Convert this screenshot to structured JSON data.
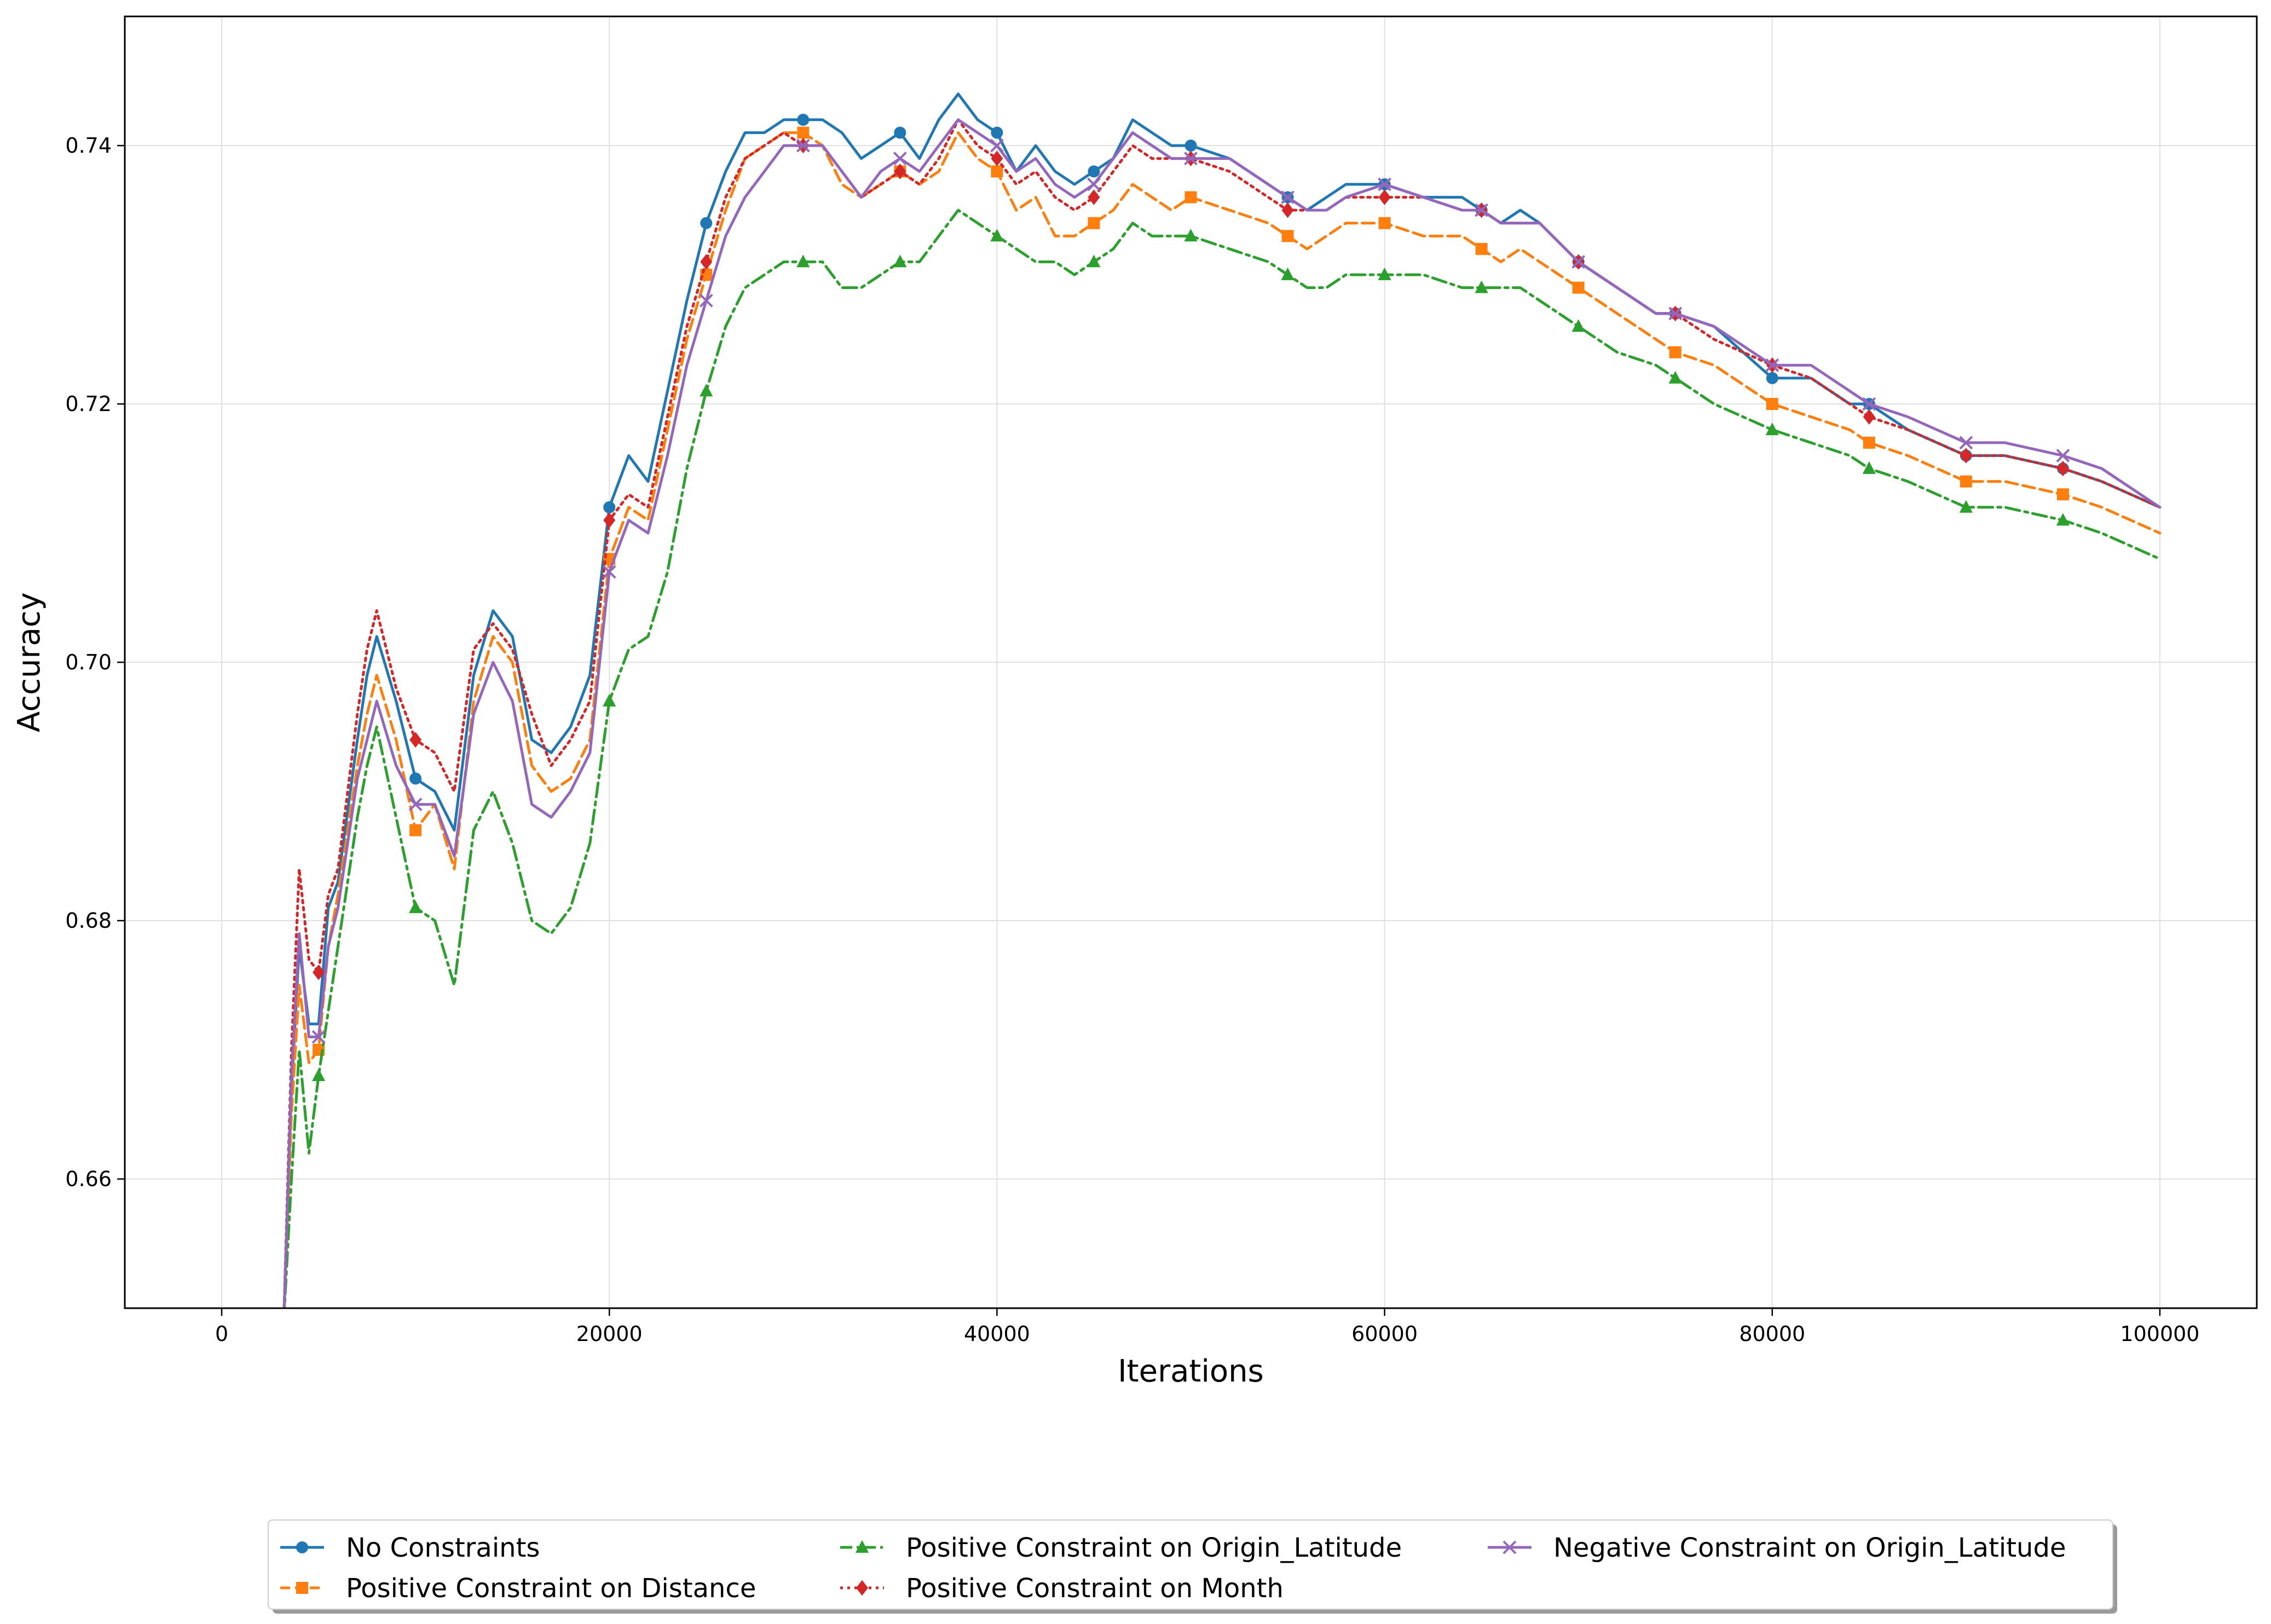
{
  "chart_data": {
    "type": "line",
    "title": "",
    "xlabel": "Iterations",
    "ylabel": "Accuracy",
    "xlim": [
      -5000,
      105000
    ],
    "ylim": [
      0.65,
      0.75
    ],
    "xticks": [
      0,
      20000,
      40000,
      60000,
      80000,
      100000
    ],
    "yticks": [
      0.66,
      0.68,
      0.7,
      0.72,
      0.74
    ],
    "xtick_labels": [
      "0",
      "20000",
      "40000",
      "60000",
      "80000",
      "100000"
    ],
    "ytick_labels": [
      "0.66",
      "0.68",
      "0.70",
      "0.72",
      "0.74"
    ],
    "grid": true,
    "legend_position": "bottom-center",
    "series": [
      {
        "name": "No Constraints",
        "color": "#1f77b4",
        "linestyle": "solid",
        "marker": "circle",
        "x": [
          3200,
          3600,
          4000,
          4500,
          5000,
          5500,
          6000,
          7000,
          7500,
          8000,
          9000,
          10000,
          11000,
          12000,
          13000,
          14000,
          15000,
          16000,
          17000,
          18000,
          19000,
          20000,
          21000,
          22000,
          23000,
          24000,
          25000,
          26000,
          27000,
          28000,
          29000,
          30000,
          31000,
          32000,
          33000,
          34000,
          35000,
          36000,
          37000,
          38000,
          39000,
          40000,
          41000,
          42000,
          43000,
          44000,
          45000,
          46000,
          47000,
          48000,
          49000,
          50000,
          52000,
          54000,
          55000,
          56000,
          57000,
          58000,
          60000,
          62000,
          64000,
          65000,
          66000,
          67000,
          68000,
          70000,
          72000,
          74000,
          75000,
          77000,
          80000,
          82000,
          84000,
          85000,
          87000,
          90000,
          92000,
          95000,
          97000,
          100000
        ],
        "y": [
          0.649,
          0.667,
          0.678,
          0.672,
          0.672,
          0.681,
          0.683,
          0.694,
          0.699,
          0.702,
          0.697,
          0.691,
          0.69,
          0.687,
          0.699,
          0.704,
          0.702,
          0.694,
          0.693,
          0.695,
          0.699,
          0.712,
          0.716,
          0.714,
          0.721,
          0.728,
          0.734,
          0.738,
          0.741,
          0.741,
          0.742,
          0.742,
          0.742,
          0.741,
          0.739,
          0.74,
          0.741,
          0.739,
          0.742,
          0.744,
          0.742,
          0.741,
          0.738,
          0.74,
          0.738,
          0.737,
          0.738,
          0.739,
          0.742,
          0.741,
          0.74,
          0.74,
          0.739,
          0.737,
          0.736,
          0.735,
          0.736,
          0.737,
          0.737,
          0.736,
          0.736,
          0.735,
          0.734,
          0.735,
          0.734,
          0.731,
          0.729,
          0.727,
          0.727,
          0.726,
          0.722,
          0.722,
          0.72,
          0.72,
          0.718,
          0.716,
          0.716,
          0.715,
          0.714,
          0.712
        ],
        "marker_x": [
          10000,
          20000,
          25000,
          30000,
          35000,
          40000,
          45000,
          50000,
          55000,
          60000,
          65000,
          70000,
          75000,
          80000,
          85000,
          90000,
          95000
        ]
      },
      {
        "name": "Positive Constraint on Distance",
        "color": "#ff7f0e",
        "linestyle": "dashed",
        "marker": "square",
        "x": [
          3200,
          3600,
          4000,
          4500,
          5000,
          5500,
          6000,
          7000,
          7500,
          8000,
          9000,
          10000,
          11000,
          12000,
          13000,
          14000,
          15000,
          16000,
          17000,
          18000,
          19000,
          20000,
          21000,
          22000,
          23000,
          24000,
          25000,
          26000,
          27000,
          28000,
          29000,
          30000,
          31000,
          32000,
          33000,
          34000,
          35000,
          36000,
          37000,
          38000,
          39000,
          40000,
          41000,
          42000,
          43000,
          44000,
          45000,
          46000,
          47000,
          48000,
          49000,
          50000,
          52000,
          54000,
          55000,
          56000,
          57000,
          58000,
          60000,
          62000,
          64000,
          65000,
          66000,
          67000,
          68000,
          70000,
          72000,
          74000,
          75000,
          77000,
          80000,
          82000,
          84000,
          85000,
          87000,
          90000,
          92000,
          95000,
          97000,
          100000
        ],
        "y": [
          0.649,
          0.665,
          0.675,
          0.669,
          0.67,
          0.678,
          0.682,
          0.692,
          0.696,
          0.699,
          0.694,
          0.687,
          0.689,
          0.684,
          0.697,
          0.702,
          0.7,
          0.692,
          0.69,
          0.691,
          0.694,
          0.708,
          0.712,
          0.711,
          0.718,
          0.725,
          0.73,
          0.735,
          0.739,
          0.74,
          0.741,
          0.741,
          0.74,
          0.737,
          0.736,
          0.737,
          0.738,
          0.737,
          0.738,
          0.741,
          0.739,
          0.738,
          0.735,
          0.736,
          0.733,
          0.733,
          0.734,
          0.735,
          0.737,
          0.736,
          0.735,
          0.736,
          0.735,
          0.734,
          0.733,
          0.732,
          0.733,
          0.734,
          0.734,
          0.733,
          0.733,
          0.732,
          0.731,
          0.732,
          0.731,
          0.729,
          0.727,
          0.725,
          0.724,
          0.723,
          0.72,
          0.719,
          0.718,
          0.717,
          0.716,
          0.714,
          0.714,
          0.713,
          0.712,
          0.71
        ],
        "marker_x": [
          5000,
          10000,
          20000,
          25000,
          30000,
          35000,
          40000,
          45000,
          50000,
          55000,
          60000,
          65000,
          70000,
          75000,
          80000,
          85000,
          90000,
          95000
        ]
      },
      {
        "name": "Positive Constraint on Origin_Latitude",
        "color": "#2ca02c",
        "linestyle": "dashdot",
        "marker": "triangle",
        "x": [
          3200,
          3600,
          4000,
          4500,
          5000,
          5500,
          6000,
          7000,
          7500,
          8000,
          9000,
          10000,
          11000,
          12000,
          13000,
          14000,
          15000,
          16000,
          17000,
          18000,
          19000,
          20000,
          21000,
          22000,
          23000,
          24000,
          25000,
          26000,
          27000,
          28000,
          29000,
          30000,
          31000,
          32000,
          33000,
          34000,
          35000,
          36000,
          37000,
          38000,
          39000,
          40000,
          41000,
          42000,
          43000,
          44000,
          45000,
          46000,
          47000,
          48000,
          49000,
          50000,
          52000,
          54000,
          55000,
          56000,
          57000,
          58000,
          60000,
          62000,
          64000,
          65000,
          66000,
          67000,
          68000,
          70000,
          72000,
          74000,
          75000,
          77000,
          80000,
          82000,
          84000,
          85000,
          87000,
          90000,
          92000,
          95000,
          97000,
          100000
        ],
        "y": [
          0.649,
          0.66,
          0.67,
          0.662,
          0.668,
          0.673,
          0.678,
          0.688,
          0.692,
          0.695,
          0.688,
          0.681,
          0.68,
          0.675,
          0.687,
          0.69,
          0.686,
          0.68,
          0.679,
          0.681,
          0.686,
          0.697,
          0.701,
          0.702,
          0.707,
          0.715,
          0.721,
          0.726,
          0.729,
          0.73,
          0.731,
          0.731,
          0.731,
          0.729,
          0.729,
          0.73,
          0.731,
          0.731,
          0.733,
          0.735,
          0.734,
          0.733,
          0.732,
          0.731,
          0.731,
          0.73,
          0.731,
          0.732,
          0.734,
          0.733,
          0.733,
          0.733,
          0.732,
          0.731,
          0.73,
          0.729,
          0.729,
          0.73,
          0.73,
          0.73,
          0.729,
          0.729,
          0.729,
          0.729,
          0.728,
          0.726,
          0.724,
          0.723,
          0.722,
          0.72,
          0.718,
          0.717,
          0.716,
          0.715,
          0.714,
          0.712,
          0.712,
          0.711,
          0.71,
          0.708
        ],
        "marker_x": [
          5000,
          10000,
          20000,
          25000,
          30000,
          35000,
          40000,
          45000,
          50000,
          55000,
          60000,
          65000,
          70000,
          75000,
          80000,
          85000,
          90000,
          95000
        ]
      },
      {
        "name": "Positive Constraint on Month",
        "color": "#d62728",
        "linestyle": "dotted",
        "marker": "diamond",
        "x": [
          3200,
          3600,
          4000,
          4500,
          5000,
          5500,
          6000,
          7000,
          7500,
          8000,
          9000,
          10000,
          11000,
          12000,
          13000,
          14000,
          15000,
          16000,
          17000,
          18000,
          19000,
          20000,
          21000,
          22000,
          23000,
          24000,
          25000,
          26000,
          27000,
          28000,
          29000,
          30000,
          31000,
          32000,
          33000,
          34000,
          35000,
          36000,
          37000,
          38000,
          39000,
          40000,
          41000,
          42000,
          43000,
          44000,
          45000,
          46000,
          47000,
          48000,
          49000,
          50000,
          52000,
          54000,
          55000,
          56000,
          57000,
          58000,
          60000,
          62000,
          64000,
          65000,
          66000,
          67000,
          68000,
          70000,
          72000,
          74000,
          75000,
          77000,
          80000,
          82000,
          84000,
          85000,
          87000,
          90000,
          92000,
          95000,
          97000,
          100000
        ],
        "y": [
          0.649,
          0.67,
          0.684,
          0.677,
          0.676,
          0.682,
          0.684,
          0.696,
          0.701,
          0.704,
          0.698,
          0.694,
          0.693,
          0.69,
          0.701,
          0.703,
          0.701,
          0.696,
          0.692,
          0.694,
          0.697,
          0.711,
          0.713,
          0.712,
          0.719,
          0.726,
          0.731,
          0.736,
          0.739,
          0.74,
          0.741,
          0.74,
          0.74,
          0.738,
          0.736,
          0.737,
          0.738,
          0.737,
          0.739,
          0.742,
          0.74,
          0.739,
          0.737,
          0.738,
          0.736,
          0.735,
          0.736,
          0.738,
          0.74,
          0.739,
          0.739,
          0.739,
          0.738,
          0.736,
          0.735,
          0.735,
          0.735,
          0.736,
          0.736,
          0.736,
          0.735,
          0.735,
          0.734,
          0.734,
          0.734,
          0.731,
          0.729,
          0.727,
          0.727,
          0.725,
          0.723,
          0.722,
          0.72,
          0.719,
          0.718,
          0.716,
          0.716,
          0.715,
          0.714,
          0.712
        ],
        "marker_x": [
          5000,
          10000,
          20000,
          25000,
          30000,
          35000,
          40000,
          45000,
          50000,
          55000,
          60000,
          65000,
          70000,
          75000,
          80000,
          85000,
          90000,
          95000
        ]
      },
      {
        "name": "Negative Constraint on Origin_Latitude",
        "color": "#9467bd",
        "linestyle": "solid",
        "marker": "x",
        "x": [
          3200,
          3600,
          4000,
          4500,
          5000,
          5500,
          6000,
          7000,
          7500,
          8000,
          9000,
          10000,
          11000,
          12000,
          13000,
          14000,
          15000,
          16000,
          17000,
          18000,
          19000,
          20000,
          21000,
          22000,
          23000,
          24000,
          25000,
          26000,
          27000,
          28000,
          29000,
          30000,
          31000,
          32000,
          33000,
          34000,
          35000,
          36000,
          37000,
          38000,
          39000,
          40000,
          41000,
          42000,
          43000,
          44000,
          45000,
          46000,
          47000,
          48000,
          49000,
          50000,
          52000,
          54000,
          55000,
          56000,
          57000,
          58000,
          60000,
          62000,
          64000,
          65000,
          66000,
          67000,
          68000,
          70000,
          72000,
          74000,
          75000,
          77000,
          80000,
          82000,
          84000,
          85000,
          87000,
          90000,
          92000,
          95000,
          97000,
          100000
        ],
        "y": [
          0.649,
          0.668,
          0.679,
          0.671,
          0.671,
          0.678,
          0.681,
          0.691,
          0.694,
          0.697,
          0.692,
          0.689,
          0.689,
          0.685,
          0.696,
          0.7,
          0.697,
          0.689,
          0.688,
          0.69,
          0.693,
          0.707,
          0.711,
          0.71,
          0.716,
          0.723,
          0.728,
          0.733,
          0.736,
          0.738,
          0.74,
          0.74,
          0.74,
          0.738,
          0.736,
          0.738,
          0.739,
          0.738,
          0.74,
          0.742,
          0.741,
          0.74,
          0.738,
          0.739,
          0.737,
          0.736,
          0.737,
          0.739,
          0.741,
          0.74,
          0.739,
          0.739,
          0.739,
          0.737,
          0.736,
          0.735,
          0.735,
          0.736,
          0.737,
          0.736,
          0.735,
          0.735,
          0.734,
          0.734,
          0.734,
          0.731,
          0.729,
          0.727,
          0.727,
          0.726,
          0.723,
          0.723,
          0.721,
          0.72,
          0.719,
          0.717,
          0.717,
          0.716,
          0.715,
          0.712
        ],
        "marker_x": [
          5000,
          10000,
          20000,
          25000,
          30000,
          35000,
          40000,
          45000,
          50000,
          55000,
          60000,
          65000,
          70000,
          75000,
          80000,
          85000,
          90000,
          95000
        ]
      }
    ]
  }
}
